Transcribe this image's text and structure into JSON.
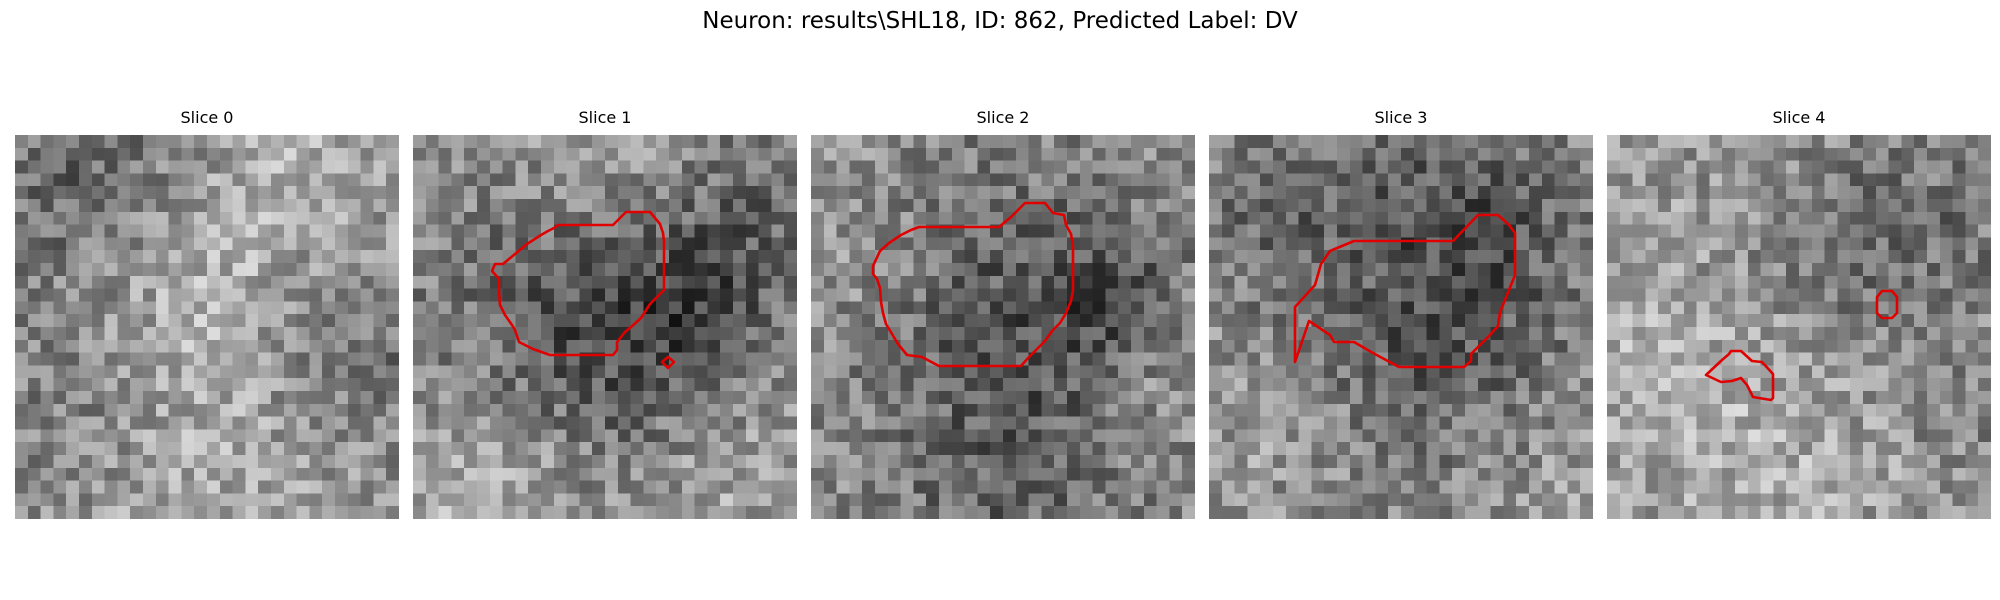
{
  "figure": {
    "title": "Neuron: results\\SHL18, ID: 862, Predicted Label: DV"
  },
  "panels": [
    {
      "title": "Slice 0",
      "has_contour": false
    },
    {
      "title": "Slice 1",
      "has_contour": true
    },
    {
      "title": "Slice 2",
      "has_contour": true
    },
    {
      "title": "Slice 3",
      "has_contour": true
    },
    {
      "title": "Slice 4",
      "has_contour": true
    }
  ],
  "colors": {
    "contour": "#e00000",
    "colormap": "gray"
  }
}
